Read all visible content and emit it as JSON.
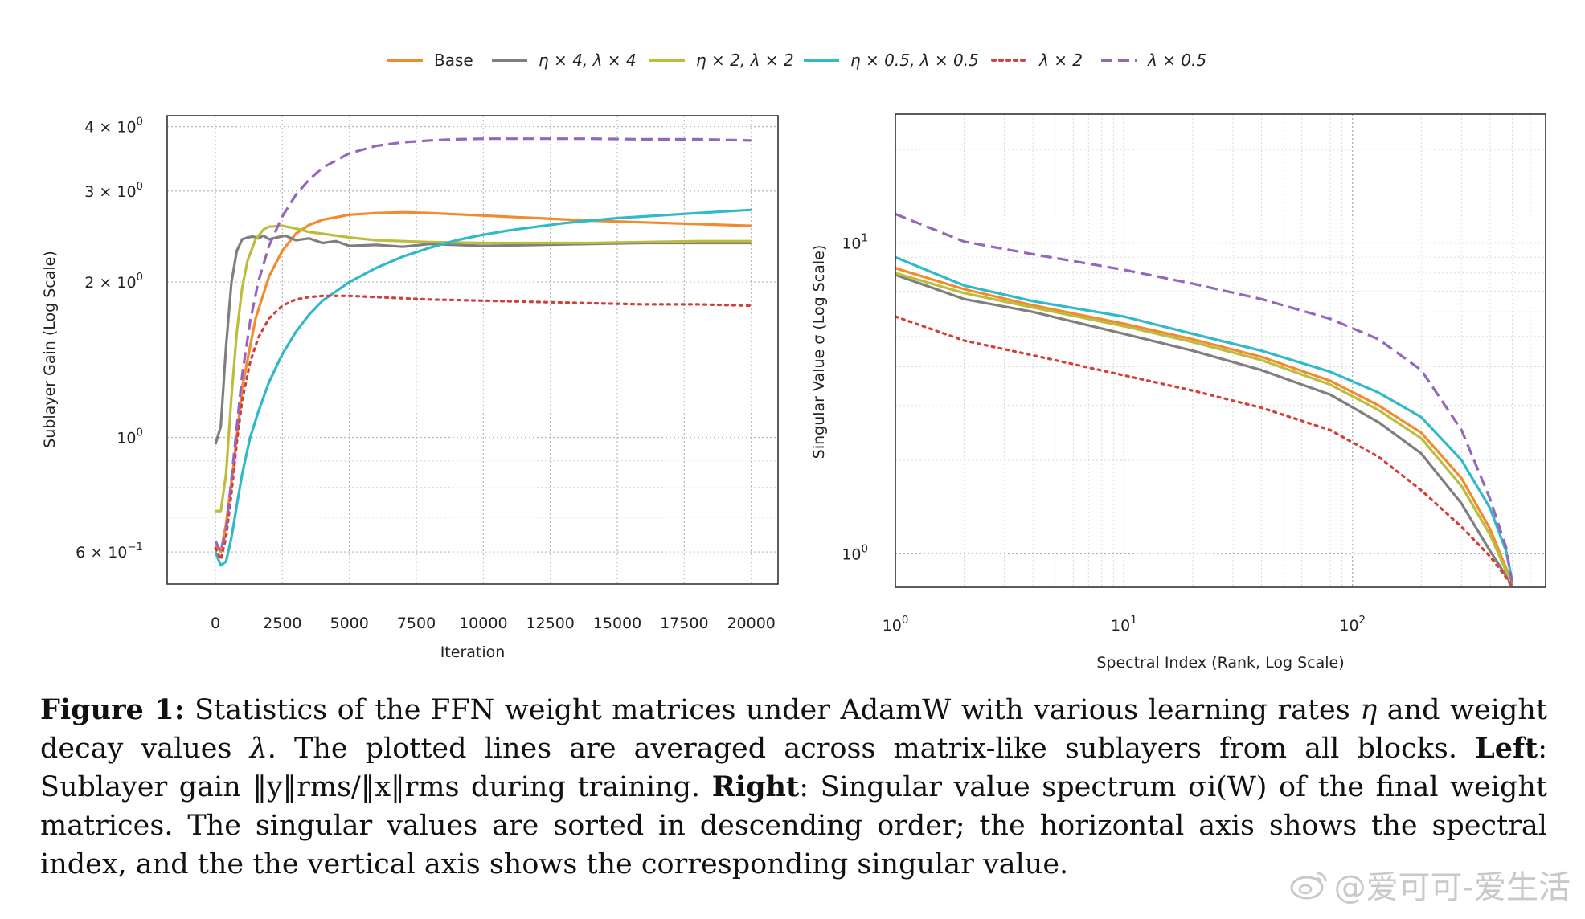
{
  "legend": [
    {
      "key": "base",
      "label": "Base",
      "color": "#f28a30",
      "dash": "solid"
    },
    {
      "key": "eta4",
      "label": "η × 4, λ × 4",
      "color": "#7f7f7f",
      "dash": "solid"
    },
    {
      "key": "eta2",
      "label": "η × 2, λ × 2",
      "color": "#bcbd3c",
      "dash": "solid"
    },
    {
      "key": "eta05",
      "label": "η × 0.5, λ × 0.5",
      "color": "#2fb9c9",
      "dash": "solid"
    },
    {
      "key": "lam2",
      "label": "λ × 2",
      "color": "#d43f3a",
      "dash": "dotted"
    },
    {
      "key": "lam05",
      "label": "λ × 0.5",
      "color": "#9467bd",
      "dash": "dashed"
    }
  ],
  "chart_data": [
    {
      "type": "line",
      "id": "left",
      "xlabel": "Iteration",
      "ylabel": "Sublayer Gain (Log Scale)",
      "xlim": [
        -1800,
        21000
      ],
      "ylim": [
        0.52,
        4.2
      ],
      "yscale": "log",
      "xticks": [
        0,
        2500,
        5000,
        7500,
        10000,
        12500,
        15000,
        17500,
        20000
      ],
      "xtick_labels": [
        "0",
        "2500",
        "5000",
        "7500",
        "10000",
        "12500",
        "15000",
        "17500",
        "20000"
      ],
      "yticks": [
        {
          "value": 4,
          "mantissa": "4 × 10",
          "exp": "0"
        },
        {
          "value": 3,
          "mantissa": "3 × 10",
          "exp": "0"
        },
        {
          "value": 2,
          "mantissa": "2 × 10",
          "exp": "0"
        },
        {
          "value": 1,
          "mantissa": "10",
          "exp": "0"
        },
        {
          "value": 0.6,
          "mantissa": "6 × 10",
          "exp": "−1"
        }
      ],
      "series": [
        {
          "key": "base",
          "x": [
            0,
            200,
            400,
            700,
            1000,
            1500,
            2000,
            2500,
            3000,
            3500,
            4000,
            5000,
            6000,
            7000,
            8000,
            10000,
            12000,
            14000,
            16000,
            18000,
            20000
          ],
          "y": [
            0.62,
            0.6,
            0.68,
            0.9,
            1.25,
            1.7,
            2.05,
            2.3,
            2.48,
            2.58,
            2.64,
            2.7,
            2.72,
            2.73,
            2.72,
            2.69,
            2.66,
            2.63,
            2.61,
            2.59,
            2.57
          ]
        },
        {
          "key": "eta4",
          "x": [
            0,
            200,
            400,
            600,
            800,
            1000,
            1200,
            1400,
            1600,
            1800,
            2000,
            2300,
            2600,
            3000,
            3500,
            4000,
            4500,
            5000,
            6000,
            7000,
            8000,
            10000,
            12000,
            14000,
            16000,
            18000,
            20000
          ],
          "y": [
            0.97,
            1.05,
            1.5,
            2.0,
            2.3,
            2.42,
            2.44,
            2.45,
            2.43,
            2.46,
            2.42,
            2.44,
            2.46,
            2.41,
            2.43,
            2.38,
            2.4,
            2.35,
            2.36,
            2.34,
            2.37,
            2.35,
            2.36,
            2.37,
            2.38,
            2.38,
            2.38
          ]
        },
        {
          "key": "eta2",
          "x": [
            0,
            200,
            400,
            600,
            800,
            1000,
            1200,
            1500,
            1800,
            2000,
            2500,
            3000,
            3500,
            4000,
            5000,
            6000,
            7000,
            8000,
            10000,
            12000,
            14000,
            16000,
            18000,
            20000
          ],
          "y": [
            0.72,
            0.72,
            0.85,
            1.2,
            1.6,
            1.95,
            2.2,
            2.42,
            2.53,
            2.56,
            2.57,
            2.54,
            2.5,
            2.48,
            2.44,
            2.41,
            2.4,
            2.39,
            2.38,
            2.38,
            2.38,
            2.39,
            2.4,
            2.4
          ]
        },
        {
          "key": "eta05",
          "x": [
            0,
            200,
            400,
            600,
            800,
            1000,
            1300,
            1600,
            2000,
            2500,
            3000,
            3500,
            4000,
            5000,
            6000,
            7000,
            8000,
            9000,
            10000,
            11000,
            12000,
            13000,
            14000,
            15000,
            16000,
            17000,
            18000,
            19000,
            20000
          ],
          "y": [
            0.6,
            0.565,
            0.575,
            0.64,
            0.74,
            0.85,
            1.0,
            1.12,
            1.28,
            1.45,
            1.6,
            1.73,
            1.84,
            2.0,
            2.13,
            2.24,
            2.33,
            2.41,
            2.47,
            2.52,
            2.56,
            2.6,
            2.63,
            2.66,
            2.68,
            2.7,
            2.72,
            2.74,
            2.76
          ]
        },
        {
          "key": "lam2",
          "x": [
            0,
            200,
            400,
            600,
            800,
            1000,
            1300,
            1600,
            2000,
            2500,
            3000,
            3500,
            4000,
            5000,
            6000,
            7000,
            8000,
            10000,
            12000,
            14000,
            16000,
            18000,
            20000
          ],
          "y": [
            0.61,
            0.58,
            0.64,
            0.78,
            0.98,
            1.18,
            1.4,
            1.56,
            1.7,
            1.8,
            1.85,
            1.87,
            1.88,
            1.88,
            1.87,
            1.86,
            1.85,
            1.84,
            1.83,
            1.82,
            1.81,
            1.81,
            1.8
          ]
        },
        {
          "key": "lam05",
          "x": [
            0,
            200,
            400,
            600,
            800,
            1000,
            1300,
            1600,
            2000,
            2500,
            3000,
            3500,
            4000,
            5000,
            6000,
            7000,
            8000,
            9000,
            10000,
            12000,
            14000,
            16000,
            18000,
            20000
          ],
          "y": [
            0.63,
            0.6,
            0.66,
            0.83,
            1.05,
            1.32,
            1.68,
            2.0,
            2.35,
            2.68,
            2.95,
            3.16,
            3.33,
            3.55,
            3.67,
            3.73,
            3.76,
            3.78,
            3.79,
            3.79,
            3.79,
            3.78,
            3.78,
            3.76
          ]
        }
      ]
    },
    {
      "type": "line",
      "id": "right",
      "xlabel": "Spectral Index (Rank, Log Scale)",
      "ylabel": "Singular Value σ (Log Scale)",
      "xscale": "log",
      "yscale": "log",
      "xlim": [
        1,
        700
      ],
      "ylim": [
        0.78,
        26
      ],
      "xticks": [
        {
          "value": 1,
          "mantissa": "10",
          "exp": "0"
        },
        {
          "value": 10,
          "mantissa": "10",
          "exp": "1"
        },
        {
          "value": 100,
          "mantissa": "10",
          "exp": "2"
        }
      ],
      "yticks": [
        {
          "value": 10,
          "mantissa": "10",
          "exp": "1"
        },
        {
          "value": 1,
          "mantissa": "10",
          "exp": "0"
        }
      ],
      "series": [
        {
          "key": "base",
          "x": [
            1,
            2,
            4,
            10,
            20,
            40,
            80,
            130,
            200,
            300,
            400,
            470,
            500
          ],
          "y": [
            8.3,
            7.1,
            6.3,
            5.5,
            4.9,
            4.3,
            3.6,
            3.0,
            2.45,
            1.75,
            1.2,
            0.9,
            0.8
          ]
        },
        {
          "key": "eta4",
          "x": [
            1,
            2,
            4,
            10,
            20,
            40,
            80,
            130,
            200,
            300,
            400,
            470,
            500
          ],
          "y": [
            7.9,
            6.6,
            6.0,
            5.1,
            4.5,
            3.9,
            3.25,
            2.65,
            2.1,
            1.45,
            1.02,
            0.85,
            0.79
          ]
        },
        {
          "key": "eta2",
          "x": [
            1,
            2,
            4,
            10,
            20,
            40,
            80,
            130,
            200,
            300,
            400,
            470,
            500
          ],
          "y": [
            8.0,
            6.9,
            6.2,
            5.4,
            4.8,
            4.2,
            3.5,
            2.9,
            2.35,
            1.65,
            1.15,
            0.88,
            0.8
          ]
        },
        {
          "key": "eta05",
          "x": [
            1,
            2,
            4,
            10,
            20,
            40,
            80,
            130,
            200,
            300,
            400,
            470,
            500
          ],
          "y": [
            9.0,
            7.3,
            6.5,
            5.8,
            5.1,
            4.5,
            3.85,
            3.3,
            2.75,
            2.0,
            1.4,
            1.02,
            0.82
          ]
        },
        {
          "key": "lam2",
          "x": [
            1,
            2,
            4,
            10,
            20,
            40,
            80,
            130,
            200,
            300,
            400,
            470,
            500
          ],
          "y": [
            5.8,
            4.85,
            4.35,
            3.75,
            3.35,
            2.95,
            2.5,
            2.05,
            1.6,
            1.22,
            0.98,
            0.84,
            0.78
          ]
        },
        {
          "key": "lam05",
          "x": [
            1,
            2,
            4,
            10,
            20,
            40,
            80,
            130,
            200,
            300,
            400,
            470,
            500
          ],
          "y": [
            12.4,
            10.1,
            9.2,
            8.2,
            7.4,
            6.6,
            5.7,
            4.9,
            3.9,
            2.5,
            1.5,
            1.05,
            0.8
          ]
        }
      ]
    }
  ],
  "caption": {
    "label": "Figure 1:",
    "text1": " Statistics of the FFN weight matrices under AdamW with various learning rates ",
    "eta": "η",
    "text2": " and weight decay values ",
    "lam": "λ",
    "text3": ". The plotted lines are averaged across matrix-like sublayers from all blocks. ",
    "left_label": "Left",
    "text4": ": Sublayer gain ‖y‖rms/‖x‖rms during training. ",
    "right_label": "Right",
    "text5": ": Singular value spectrum σi(W) of the final weight matrices. The singular values are sorted in descending order; the horizontal axis shows the spectral index, and the the vertical axis shows the corresponding singular value."
  },
  "watermark": "@爱可可-爱生活"
}
